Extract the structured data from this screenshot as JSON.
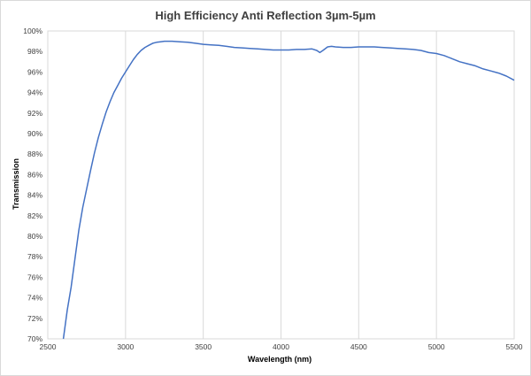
{
  "chart_data": {
    "type": "line",
    "title": "High Efficiency Anti Reflection 3µm-5µm",
    "xlabel": "Wavelength (nm)",
    "ylabel": "Transmission",
    "xlim": [
      2500,
      5500
    ],
    "ylim": [
      70,
      100
    ],
    "x_ticks": [
      2500,
      3000,
      3500,
      4000,
      4500,
      5000,
      5500
    ],
    "x_tick_labels": [
      "2500",
      "3000",
      "3500",
      "4000",
      "4500",
      "5000",
      "5500"
    ],
    "y_ticks": [
      70,
      72,
      74,
      76,
      78,
      80,
      82,
      84,
      86,
      88,
      90,
      92,
      94,
      96,
      98,
      100
    ],
    "y_tick_labels": [
      "70%",
      "72%",
      "74%",
      "76%",
      "78%",
      "80%",
      "82%",
      "84%",
      "86%",
      "88%",
      "90%",
      "92%",
      "94%",
      "96%",
      "98%",
      "100%"
    ],
    "grid": "vertical",
    "legend": "none",
    "series": [
      {
        "color": "#4472c4",
        "x": [
          2600,
          2625,
          2650,
          2675,
          2700,
          2725,
          2750,
          2775,
          2800,
          2825,
          2850,
          2875,
          2900,
          2925,
          2950,
          2975,
          3000,
          3025,
          3050,
          3075,
          3100,
          3125,
          3150,
          3175,
          3200,
          3225,
          3250,
          3275,
          3300,
          3350,
          3400,
          3450,
          3500,
          3550,
          3600,
          3650,
          3700,
          3750,
          3800,
          3850,
          3900,
          3950,
          4000,
          4050,
          4100,
          4150,
          4200,
          4230,
          4250,
          4270,
          4300,
          4325,
          4350,
          4400,
          4450,
          4500,
          4550,
          4600,
          4650,
          4700,
          4750,
          4800,
          4850,
          4900,
          4950,
          5000,
          5050,
          5100,
          5150,
          5200,
          5250,
          5300,
          5350,
          5400,
          5450,
          5500
        ],
        "y": [
          70.0,
          72.8,
          75.0,
          77.8,
          80.6,
          82.8,
          84.6,
          86.4,
          88.1,
          89.6,
          90.9,
          92.1,
          93.1,
          94.0,
          94.7,
          95.4,
          96.0,
          96.6,
          97.2,
          97.7,
          98.1,
          98.4,
          98.6,
          98.8,
          98.9,
          98.95,
          99.0,
          99.0,
          99.0,
          98.95,
          98.9,
          98.8,
          98.7,
          98.65,
          98.6,
          98.5,
          98.4,
          98.35,
          98.3,
          98.25,
          98.2,
          98.15,
          98.15,
          98.15,
          98.2,
          98.2,
          98.25,
          98.1,
          97.9,
          98.1,
          98.45,
          98.5,
          98.45,
          98.4,
          98.4,
          98.45,
          98.45,
          98.45,
          98.4,
          98.35,
          98.3,
          98.25,
          98.2,
          98.1,
          97.9,
          97.8,
          97.6,
          97.3,
          97.0,
          96.8,
          96.6,
          96.3,
          96.1,
          95.9,
          95.6,
          95.2
        ]
      }
    ]
  }
}
